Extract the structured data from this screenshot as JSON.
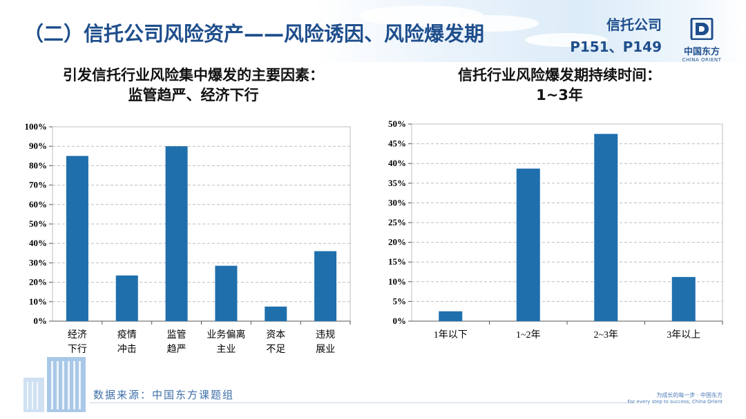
{
  "header": {
    "title": "（二）信托公司风险资产——风险诱因、风险爆发期",
    "ref_line1": "信托公司",
    "ref_line2": "P151、P149"
  },
  "logo": {
    "name": "中国东方",
    "sub": "CHINA ORIENT"
  },
  "left_panel": {
    "subtitle_line1": "引发信托行业风险集中爆发的主要因素：",
    "subtitle_line2": "监管趋严、经济下行"
  },
  "right_panel": {
    "subtitle_line1": "信托行业风险爆发期持续时间：",
    "subtitle_line2": "1~3年"
  },
  "chart_data": [
    {
      "type": "bar",
      "categories": [
        [
          "经济",
          "下行"
        ],
        [
          "疫情",
          "冲击"
        ],
        [
          "监管",
          "趋严"
        ],
        [
          "业务偏离",
          "主业"
        ],
        [
          "资本",
          "不足"
        ],
        [
          "违规",
          "展业"
        ]
      ],
      "values": [
        85,
        23.5,
        90,
        28.5,
        7.5,
        36
      ],
      "yticks": [
        "0%",
        "10%",
        "20%",
        "30%",
        "40%",
        "50%",
        "60%",
        "70%",
        "80%",
        "90%",
        "100%"
      ],
      "ylim": [
        0,
        100
      ],
      "grid": true,
      "color": "#1f6fad"
    },
    {
      "type": "bar",
      "categories": [
        [
          "1年以下"
        ],
        [
          "1~2年"
        ],
        [
          "2~3年"
        ],
        [
          "3年以上"
        ]
      ],
      "values": [
        2.5,
        38.7,
        47.5,
        11.2
      ],
      "yticks": [
        "0%",
        "5%",
        "10%",
        "15%",
        "20%",
        "25%",
        "30%",
        "35%",
        "40%",
        "45%",
        "50%"
      ],
      "ylim": [
        0,
        50
      ],
      "grid": true,
      "color": "#1f6fad"
    }
  ],
  "footer": {
    "source": "数据来源：中国东方课题组",
    "slogan_cn": "为成长的每一步 · 中国东方",
    "slogan_en": "For every step to success, China Orient"
  },
  "colors": {
    "brand": "#1f4e8c",
    "bar": "#1f6fad"
  }
}
